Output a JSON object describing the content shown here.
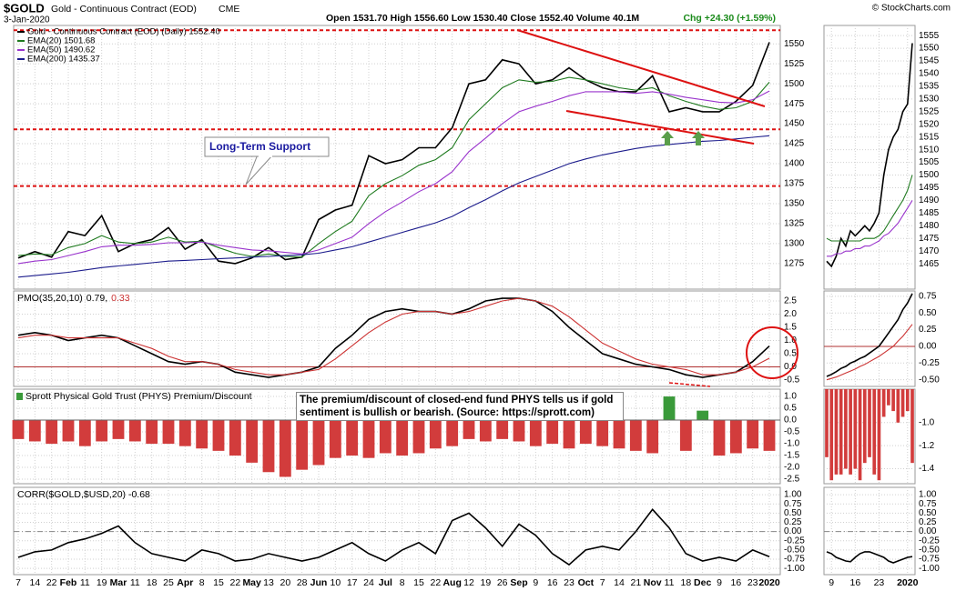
{
  "header": {
    "symbol": "$GOLD",
    "name": "Gold - Continuous Contract (EOD)",
    "exchange": "CME",
    "date": "3-Jan-2020",
    "quote": "Open 1531.70 High 1556.60 Low 1530.40 Close 1552.40 Volume 40.1M",
    "change": "Chg +24.30 (+1.59%)",
    "credit": "© StockCharts.com"
  },
  "chart_data": [
    {
      "type": "line",
      "legend": "block",
      "annotation": "Long-Term Support",
      "ylim": [
        1243,
        1573
      ],
      "yticks": [
        1275,
        1300,
        1325,
        1350,
        1375,
        1400,
        1425,
        1450,
        1475,
        1500,
        1525,
        1550
      ],
      "grid": true,
      "reference_lines": {
        "values": [
          1567,
          1443,
          1372
        ],
        "color": "#dd1111",
        "dashed": true
      },
      "series": [
        {
          "name": "Gold - Continuous Contract (EOD) (Daily) 1552.40",
          "color": "#000000",
          "values": [
            1282,
            1290,
            1283,
            1315,
            1310,
            1335,
            1290,
            1300,
            1305,
            1320,
            1293,
            1305,
            1278,
            1275,
            1282,
            1295,
            1280,
            1283,
            1330,
            1342,
            1348,
            1410,
            1400,
            1405,
            1420,
            1420,
            1445,
            1500,
            1505,
            1530,
            1525,
            1500,
            1505,
            1520,
            1505,
            1495,
            1490,
            1490,
            1510,
            1465,
            1470,
            1465,
            1465,
            1478,
            1498,
            1552
          ]
        },
        {
          "name": "EMA(20) 1501.68",
          "color": "#1f7a1f",
          "values": [
            1285,
            1287,
            1286,
            1295,
            1300,
            1310,
            1302,
            1300,
            1302,
            1308,
            1302,
            1303,
            1295,
            1288,
            1284,
            1287,
            1284,
            1283,
            1300,
            1315,
            1328,
            1360,
            1375,
            1385,
            1398,
            1405,
            1420,
            1455,
            1475,
            1495,
            1505,
            1502,
            1503,
            1508,
            1505,
            1500,
            1495,
            1492,
            1495,
            1485,
            1478,
            1472,
            1468,
            1470,
            1478,
            1502
          ]
        },
        {
          "name": "EMA(50) 1490.62",
          "color": "#9933cc",
          "values": [
            1275,
            1278,
            1280,
            1285,
            1290,
            1296,
            1298,
            1298,
            1299,
            1301,
            1301,
            1302,
            1298,
            1295,
            1292,
            1291,
            1289,
            1287,
            1292,
            1300,
            1308,
            1325,
            1340,
            1352,
            1365,
            1375,
            1390,
            1415,
            1432,
            1450,
            1465,
            1472,
            1478,
            1485,
            1490,
            1490,
            1490,
            1488,
            1490,
            1487,
            1483,
            1480,
            1477,
            1476,
            1480,
            1491
          ]
        },
        {
          "name": "EMA(200) 1435.37",
          "color": "#1c1c8c",
          "values": [
            1258,
            1260,
            1262,
            1264,
            1267,
            1270,
            1272,
            1274,
            1276,
            1278,
            1279,
            1280,
            1281,
            1282,
            1283,
            1284,
            1285,
            1286,
            1288,
            1292,
            1296,
            1302,
            1308,
            1314,
            1320,
            1326,
            1334,
            1345,
            1355,
            1366,
            1376,
            1384,
            1392,
            1400,
            1406,
            1411,
            1415,
            1419,
            1422,
            1424,
            1426,
            1428,
            1429,
            1431,
            1433,
            1435
          ]
        }
      ]
    },
    {
      "type": "line",
      "legend": "inline",
      "title": "PMO(35,20,10)",
      "ylim": [
        -0.74,
        2.88
      ],
      "yticks": [
        2.5,
        {
          "value": 2,
          "label": "2.0"
        },
        1.5,
        {
          "value": 1,
          "label": "1.0"
        },
        0.5,
        {
          "value": 0,
          "label": "0.0"
        },
        -0.5
      ],
      "grid": true,
      "reference_lines": {
        "values": [
          0
        ],
        "color": "#b03030",
        "dashed": false
      },
      "series": [
        {
          "name": "0.79,",
          "color": "#000000",
          "values": [
            1.2,
            1.3,
            1.2,
            1.0,
            1.1,
            1.2,
            1.1,
            0.8,
            0.5,
            0.2,
            0.1,
            0.2,
            0.1,
            -0.2,
            -0.3,
            -0.4,
            -0.3,
            -0.2,
            0.0,
            0.7,
            1.2,
            1.8,
            2.1,
            2.2,
            2.1,
            2.1,
            2.0,
            2.2,
            2.5,
            2.6,
            2.6,
            2.5,
            2.1,
            1.5,
            1.0,
            0.5,
            0.3,
            0.1,
            0.0,
            -0.1,
            -0.3,
            -0.4,
            -0.3,
            -0.2,
            0.2,
            0.79
          ]
        },
        {
          "name": "0.33",
          "color": "#cc3333",
          "values": [
            1.1,
            1.2,
            1.2,
            1.1,
            1.1,
            1.1,
            1.1,
            0.9,
            0.7,
            0.4,
            0.2,
            0.2,
            0.1,
            -0.1,
            -0.2,
            -0.3,
            -0.3,
            -0.2,
            -0.1,
            0.3,
            0.8,
            1.3,
            1.7,
            2.0,
            2.1,
            2.1,
            2.0,
            2.1,
            2.3,
            2.5,
            2.6,
            2.5,
            2.3,
            1.9,
            1.4,
            0.9,
            0.6,
            0.3,
            0.1,
            0.0,
            -0.1,
            -0.3,
            -0.3,
            -0.2,
            0.0,
            0.33
          ]
        }
      ]
    },
    {
      "type": "bar",
      "legend": "swatch",
      "title": "Sprott Physical Gold Trust (PHYS) Premium/Discount",
      "annotation": "The premium/discount of closed-end fund PHYS tells us if gold sentiment is bullish or bearish. (Source: https://sprott.com)",
      "ylim": [
        -2.69,
        1.31
      ],
      "yticks": [
        {
          "value": 1,
          "label": "1.0"
        },
        0.5,
        {
          "value": 0,
          "label": "0.0"
        },
        -0.5,
        {
          "value": -1,
          "label": "-1.0"
        },
        -1.5,
        {
          "value": -2,
          "label": "-2.0"
        },
        -2.5
      ],
      "grid": true,
      "color": "#d23c3c",
      "positive_color": "#3a9a3a",
      "values": [
        -0.8,
        -0.9,
        -1.0,
        -0.9,
        -1.1,
        -0.9,
        -0.8,
        -0.9,
        -1.0,
        -1.0,
        -1.1,
        -1.2,
        -1.3,
        -1.5,
        -1.8,
        -2.2,
        -2.4,
        -2.1,
        -1.9,
        -1.6,
        -1.5,
        -1.6,
        -1.4,
        -1.5,
        -1.4,
        -1.2,
        -1.1,
        -0.8,
        -0.9,
        -0.8,
        -0.9,
        -1.1,
        -1.0,
        -1.2,
        -1.0,
        -1.1,
        -1.2,
        -1.3,
        -1.4,
        1.0,
        -1.3,
        0.4,
        -1.5,
        -1.4,
        -1.2,
        -1.3
      ]
    },
    {
      "type": "line",
      "title": "CORR($GOLD,$USD,20) -0.68",
      "ylim": [
        -1.17,
        1.2
      ],
      "yticks": [
        {
          "value": 1,
          "label": "1.00"
        },
        0.75,
        {
          "value": 0.5,
          "label": "0.50"
        },
        0.25,
        {
          "value": 0,
          "label": "0.00"
        },
        -0.25,
        {
          "value": -0.5,
          "label": "-0.50"
        },
        -0.75,
        {
          "value": -1,
          "label": "-1.00"
        }
      ],
      "grid": true,
      "reference_lines": {
        "values": [
          0
        ],
        "color": "#888888",
        "dashed": true
      },
      "categories": [
        "7",
        "14",
        "22",
        "Feb",
        "11",
        "19",
        "Mar",
        "11",
        "18",
        "25",
        "Apr",
        "8",
        "15",
        "22",
        "May",
        "13",
        "20",
        "28",
        "Jun",
        "10",
        "17",
        "24",
        "Jul",
        "8",
        "15",
        "22",
        "Aug",
        "12",
        "19",
        "26",
        "Sep",
        "9",
        "16",
        "23",
        "Oct",
        "7",
        "14",
        "21",
        "Nov",
        "11",
        "18",
        "Dec",
        "9",
        "16",
        "23",
        "2020"
      ],
      "series": [
        {
          "color": "#000000",
          "values": [
            -0.7,
            -0.55,
            -0.5,
            -0.3,
            -0.2,
            -0.05,
            0.15,
            -0.3,
            -0.6,
            -0.7,
            -0.8,
            -0.5,
            -0.6,
            -0.8,
            -0.75,
            -0.6,
            -0.7,
            -0.8,
            -0.7,
            -0.5,
            -0.3,
            -0.6,
            -0.8,
            -0.5,
            -0.3,
            -0.6,
            0.3,
            0.5,
            0.1,
            -0.4,
            0.2,
            -0.1,
            -0.6,
            -0.9,
            -0.5,
            -0.4,
            -0.5,
            0.0,
            0.6,
            0.1,
            -0.6,
            -0.8,
            -0.7,
            -0.8,
            -0.5,
            -0.68
          ]
        }
      ]
    },
    {
      "type": "line",
      "ylim": [
        1455,
        1559
      ],
      "yticks": [
        1465,
        1470,
        1475,
        1480,
        1485,
        1490,
        1495,
        1500,
        1505,
        1510,
        1515,
        1520,
        1525,
        1530,
        1535,
        1540,
        1545,
        1550,
        1555
      ],
      "grid": true,
      "series": [
        {
          "color": "#000000",
          "values": [
            1466,
            1464,
            1468,
            1475,
            1472,
            1478,
            1476,
            1478,
            1480,
            1478,
            1481,
            1485,
            1500,
            1510,
            1515,
            1518,
            1525,
            1528,
            1552
          ]
        },
        {
          "color": "#1f7a1f",
          "values": [
            1475,
            1474,
            1474,
            1474,
            1474,
            1474,
            1474,
            1474,
            1475,
            1475,
            1475,
            1476,
            1478,
            1481,
            1484,
            1487,
            1490,
            1494,
            1500
          ]
        },
        {
          "color": "#9933cc",
          "values": [
            1468,
            1468,
            1469,
            1469,
            1470,
            1470,
            1471,
            1471,
            1472,
            1472,
            1473,
            1474,
            1476,
            1477,
            1479,
            1481,
            1484,
            1487,
            1490
          ]
        }
      ]
    },
    {
      "type": "line",
      "ylim": [
        -0.6,
        0.83
      ],
      "yticks": [
        0.75,
        {
          "value": 0.5,
          "label": "0.50"
        },
        0.25,
        {
          "value": 0,
          "label": "0.00"
        },
        -0.25,
        {
          "value": -0.5,
          "label": "-0.50"
        }
      ],
      "grid": true,
      "reference_lines": {
        "values": [
          0
        ],
        "color": "#b03030",
        "dashed": false
      },
      "series": [
        {
          "color": "#000000",
          "values": [
            -0.45,
            -0.42,
            -0.38,
            -0.33,
            -0.3,
            -0.25,
            -0.22,
            -0.18,
            -0.15,
            -0.1,
            -0.05,
            0.0,
            0.1,
            0.2,
            0.3,
            0.4,
            0.55,
            0.65,
            0.79
          ]
        },
        {
          "color": "#cc3333",
          "values": [
            -0.5,
            -0.48,
            -0.46,
            -0.43,
            -0.4,
            -0.37,
            -0.34,
            -0.3,
            -0.27,
            -0.23,
            -0.19,
            -0.15,
            -0.1,
            -0.05,
            0.0,
            0.08,
            0.15,
            0.24,
            0.33
          ]
        }
      ]
    },
    {
      "type": "bar",
      "ylim": [
        -1.53,
        -0.71
      ],
      "yticks": [
        {
          "value": -1,
          "label": "-1.0"
        },
        -1.2,
        -1.4
      ],
      "grid": true,
      "color": "#d23c3c",
      "positive_color": "#3a9a3a",
      "values": [
        -1.3,
        -1.5,
        -1.45,
        -1.45,
        -1.4,
        -1.45,
        -1.4,
        -1.5,
        -1.35,
        -1.3,
        -1.45,
        -1.5,
        -0.95,
        -0.85,
        -0.9,
        -1.0,
        -0.95,
        -0.9,
        -1.35
      ]
    },
    {
      "type": "line",
      "ylim": [
        -1.17,
        1.2
      ],
      "yticks": [
        {
          "value": 1,
          "label": "1.00"
        },
        0.75,
        {
          "value": 0.5,
          "label": "0.50"
        },
        0.25,
        {
          "value": 0,
          "label": "0.00"
        },
        -0.25,
        {
          "value": -0.5,
          "label": "-0.50"
        },
        -0.75,
        {
          "value": -1,
          "label": "-1.00"
        }
      ],
      "grid": true,
      "reference_lines": {
        "values": [
          0
        ],
        "color": "#888888",
        "dashed": true
      },
      "categories": [
        null,
        "9",
        null,
        null,
        null,
        null,
        "16",
        null,
        null,
        null,
        null,
        "23",
        null,
        null,
        null,
        null,
        null,
        "2020",
        null
      ],
      "series": [
        {
          "color": "#000000",
          "values": [
            -0.55,
            -0.6,
            -0.7,
            -0.75,
            -0.8,
            -0.82,
            -0.7,
            -0.6,
            -0.55,
            -0.55,
            -0.6,
            -0.65,
            -0.7,
            -0.8,
            -0.85,
            -0.8,
            -0.75,
            -0.7,
            -0.68
          ]
        }
      ]
    }
  ]
}
